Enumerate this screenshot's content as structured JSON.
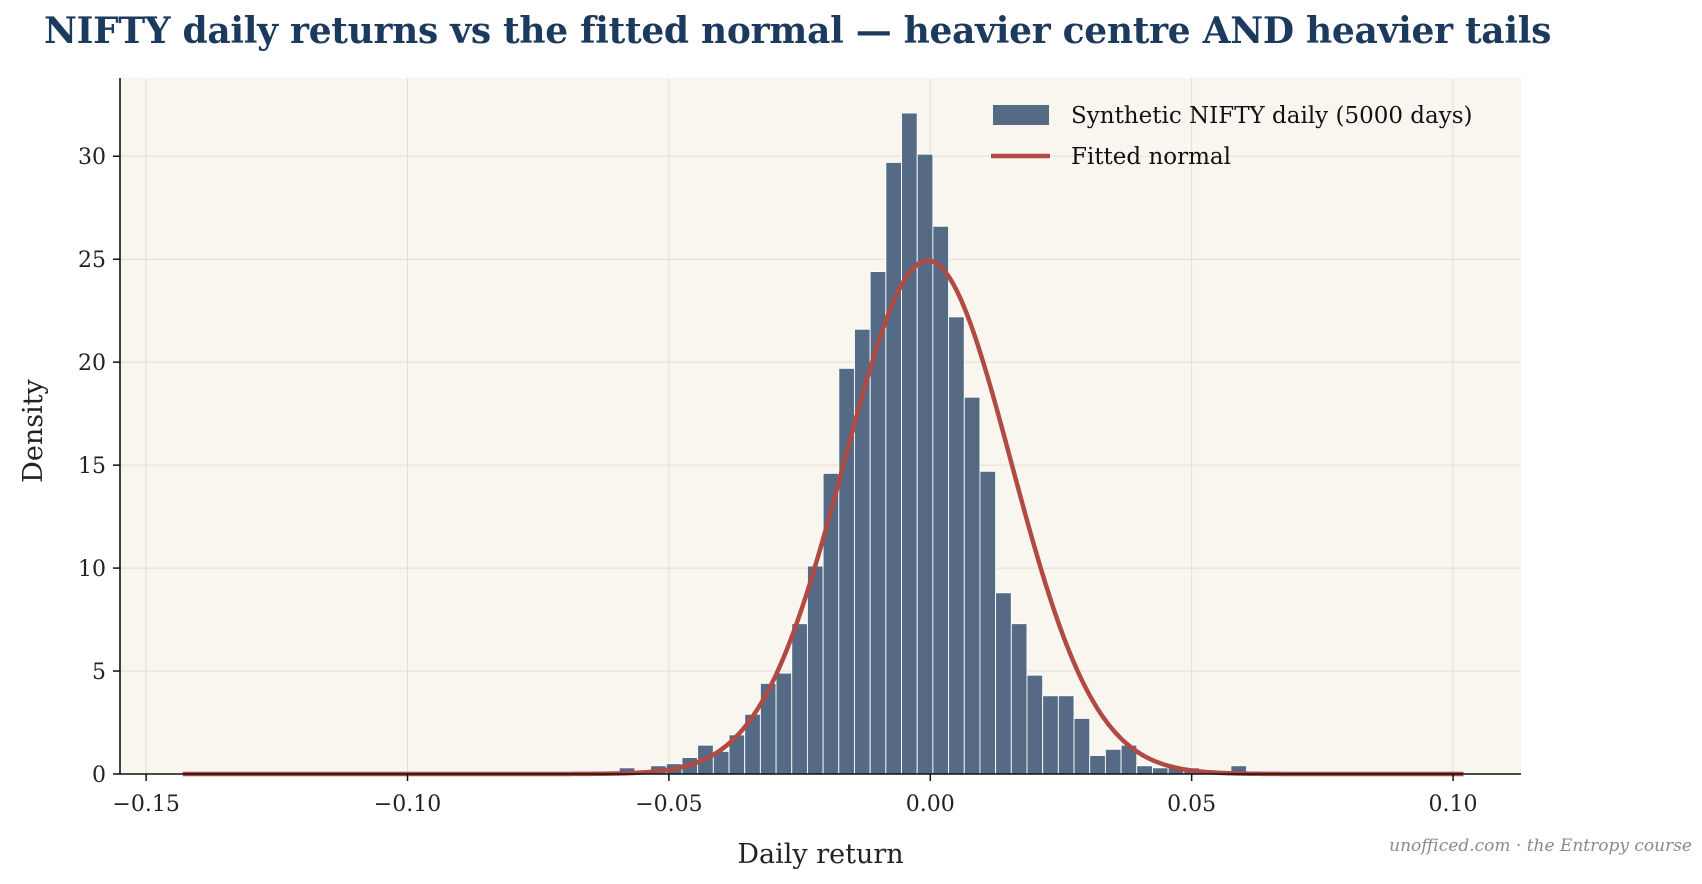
{
  "chart_data": {
    "type": "bar",
    "title": "NIFTY daily returns vs the fitted normal — heavier centre AND heavier tails",
    "xlabel": "Daily return",
    "ylabel": "Density",
    "xlim": [
      -0.155,
      0.113
    ],
    "ylim": [
      0,
      33.8
    ],
    "x_ticks": [
      -0.15,
      -0.1,
      -0.05,
      0.0,
      0.05,
      0.1
    ],
    "x_tick_labels": [
      "−0.15",
      "−0.10",
      "−0.05",
      "0.00",
      "0.05",
      "0.10"
    ],
    "y_ticks": [
      0,
      5,
      10,
      15,
      20,
      25,
      30
    ],
    "y_tick_labels": [
      "0",
      "5",
      "10",
      "15",
      "20",
      "25",
      "30"
    ],
    "grid": true,
    "legend_position": "top-right",
    "histogram": {
      "name": "Synthetic NIFTY daily (5000 days)",
      "bin_width": 0.003,
      "bin_left_edges": [
        -0.0805,
        -0.0595,
        -0.0565,
        -0.0535,
        -0.0505,
        -0.0475,
        -0.0445,
        -0.0415,
        -0.0385,
        -0.0355,
        -0.0325,
        -0.0295,
        -0.0265,
        -0.0235,
        -0.0205,
        -0.0175,
        -0.0145,
        -0.0115,
        -0.0085,
        -0.0055,
        -0.0025,
        0.0005,
        0.0035,
        0.0065,
        0.0095,
        0.0125,
        0.0155,
        0.0185,
        0.0215,
        0.0245,
        0.0275,
        0.0305,
        0.0335,
        0.0365,
        0.0395,
        0.0425,
        0.0455,
        0.0485,
        0.0515,
        0.0575
      ],
      "density": [
        0.1,
        0.3,
        0.1,
        0.4,
        0.5,
        0.8,
        1.4,
        1.1,
        1.9,
        2.9,
        4.4,
        4.9,
        7.3,
        10.1,
        14.6,
        19.7,
        21.6,
        24.4,
        29.7,
        32.1,
        30.1,
        26.6,
        22.2,
        18.3,
        14.7,
        8.8,
        7.3,
        4.8,
        3.8,
        3.8,
        2.7,
        0.9,
        1.2,
        1.4,
        0.4,
        0.3,
        0.3,
        0.3,
        0.2,
        0.4
      ],
      "color": "#546a85"
    },
    "fitted_normal": {
      "name": "Fitted normal",
      "mean": -0.0005,
      "std": 0.016,
      "x_range": [
        -0.143,
        0.102
      ],
      "color": "#b04a45"
    },
    "background_color": "#f9f6ef"
  },
  "credit": "unofficed.com · the Entropy course"
}
